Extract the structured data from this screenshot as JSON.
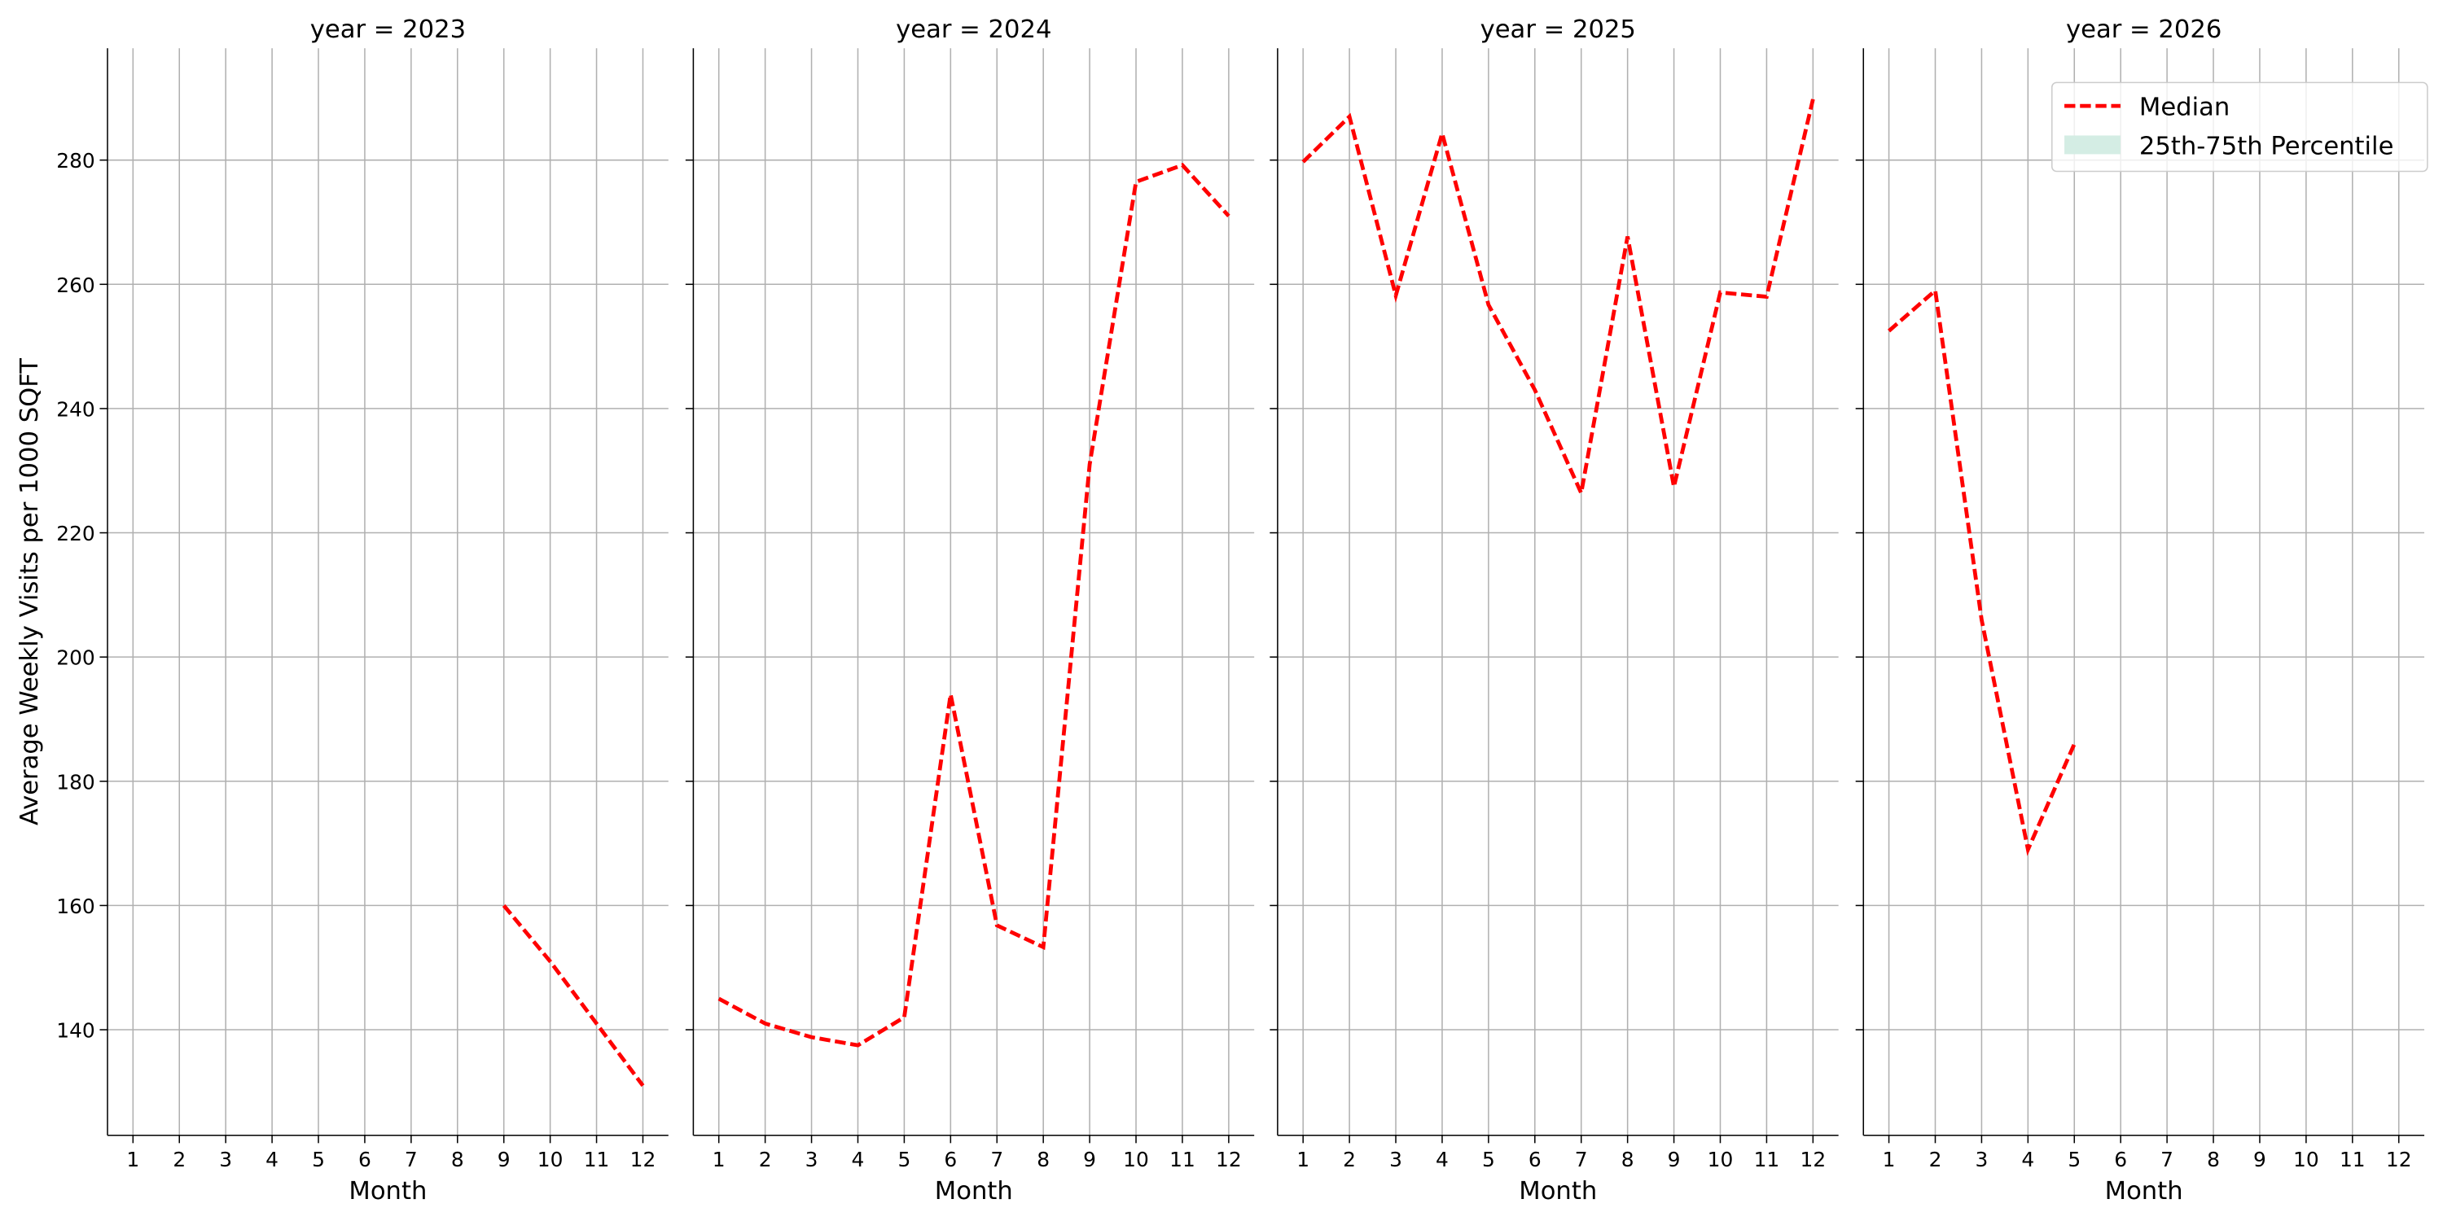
{
  "chart_data": [
    {
      "type": "line",
      "title": "year = 2023",
      "xlabel": "Month",
      "ylabel": "Average Weekly Visits per 1000 SQFT",
      "x": [
        1,
        2,
        3,
        4,
        5,
        6,
        7,
        8,
        9,
        10,
        11,
        12
      ],
      "series": [
        {
          "name": "Median",
          "color": "#ff0000",
          "style": "dashed",
          "values": [
            null,
            null,
            null,
            null,
            null,
            null,
            null,
            null,
            160,
            151,
            141,
            131
          ]
        }
      ],
      "xlim": [
        0.45,
        12.55
      ],
      "xticks": [
        1,
        2,
        3,
        4,
        5,
        6,
        7,
        8,
        9,
        10,
        11,
        12
      ],
      "ylim": [
        123,
        298
      ],
      "yticks": [
        140,
        160,
        180,
        200,
        220,
        240,
        260,
        280
      ],
      "grid": true
    },
    {
      "type": "line",
      "title": "year = 2024",
      "xlabel": "Month",
      "x": [
        1,
        2,
        3,
        4,
        5,
        6,
        7,
        8,
        9,
        10,
        11,
        12
      ],
      "series": [
        {
          "name": "Median",
          "color": "#ff0000",
          "style": "dashed",
          "values": [
            145,
            141,
            138.8,
            137.5,
            142,
            194,
            156.8,
            153.3,
            231,
            276.5,
            279.2,
            271
          ]
        }
      ],
      "xlim": [
        0.45,
        12.55
      ],
      "xticks": [
        1,
        2,
        3,
        4,
        5,
        6,
        7,
        8,
        9,
        10,
        11,
        12
      ],
      "ylim": [
        123,
        298
      ],
      "yticks": [
        140,
        160,
        180,
        200,
        220,
        240,
        260,
        280
      ],
      "grid": true
    },
    {
      "type": "line",
      "title": "year = 2025",
      "xlabel": "Month",
      "x": [
        1,
        2,
        3,
        4,
        5,
        6,
        7,
        8,
        9,
        10,
        11,
        12
      ],
      "series": [
        {
          "name": "Median",
          "color": "#ff0000",
          "style": "dashed",
          "values": [
            279.7,
            287,
            258.2,
            284.3,
            256.7,
            243,
            226.4,
            267.7,
            227.4,
            258.7,
            258,
            289.8
          ]
        }
      ],
      "xlim": [
        0.45,
        12.55
      ],
      "xticks": [
        1,
        2,
        3,
        4,
        5,
        6,
        7,
        8,
        9,
        10,
        11,
        12
      ],
      "ylim": [
        123,
        298
      ],
      "yticks": [
        140,
        160,
        180,
        200,
        220,
        240,
        260,
        280
      ],
      "grid": true
    },
    {
      "type": "line",
      "title": "year = 2026",
      "xlabel": "Month",
      "x": [
        1,
        2,
        3,
        4,
        5,
        6,
        7,
        8,
        9,
        10,
        11,
        12
      ],
      "series": [
        {
          "name": "Median",
          "color": "#ff0000",
          "style": "dashed",
          "values": [
            252.5,
            259,
            206,
            169,
            186,
            null,
            null,
            null,
            null,
            null,
            null,
            null
          ]
        }
      ],
      "xlim": [
        0.45,
        12.55
      ],
      "xticks": [
        1,
        2,
        3,
        4,
        5,
        6,
        7,
        8,
        9,
        10,
        11,
        12
      ],
      "ylim": [
        123,
        298
      ],
      "yticks": [
        140,
        160,
        180,
        200,
        220,
        240,
        260,
        280
      ],
      "grid": true,
      "legend": {
        "loc": "upper right",
        "entries": [
          {
            "name": "Median",
            "color": "#ff0000",
            "style": "dashed"
          },
          {
            "name": "25th-75th Percentile",
            "color": "#d4ede4",
            "style": "patch"
          }
        ]
      }
    }
  ]
}
